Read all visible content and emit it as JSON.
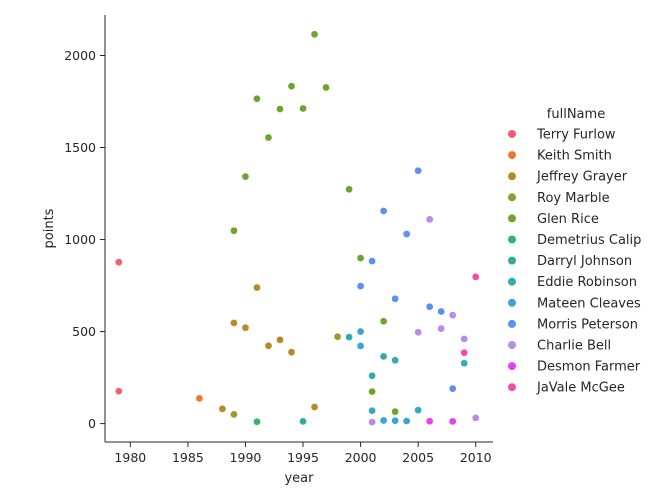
{
  "chart_data": {
    "type": "scatter",
    "xlabel": "year",
    "ylabel": "points",
    "xlim": [
      1977.8,
      2011.5
    ],
    "ylim": [
      -100,
      2220
    ],
    "xticks": [
      1980,
      1985,
      1990,
      1995,
      2000,
      2005,
      2010
    ],
    "yticks": [
      0,
      500,
      1000,
      1500,
      2000
    ],
    "grid": false,
    "legend_title": "fullName",
    "legend_position": "right",
    "series": [
      {
        "name": "Terry Furlow",
        "color": "#f0616c",
        "points": [
          [
            1979,
            877
          ],
          [
            1979,
            176
          ]
        ]
      },
      {
        "name": "Keith Smith",
        "color": "#e8792c",
        "points": [
          [
            1986,
            137
          ]
        ]
      },
      {
        "name": "Jeffrey Grayer",
        "color": "#b88a27",
        "points": [
          [
            1988,
            80
          ],
          [
            1989,
            547
          ],
          [
            1990,
            521
          ],
          [
            1991,
            739
          ],
          [
            1992,
            423
          ],
          [
            1993,
            455
          ],
          [
            1994,
            388
          ],
          [
            1996,
            90
          ]
        ]
      },
      {
        "name": "Roy Marble",
        "color": "#999a27",
        "points": [
          [
            1989,
            50
          ],
          [
            1998,
            472
          ]
        ]
      },
      {
        "name": "Glen Rice",
        "color": "#6ba52b",
        "points": [
          [
            1989,
            1048
          ],
          [
            1990,
            1342
          ],
          [
            1991,
            1765
          ],
          [
            1992,
            1554
          ],
          [
            1993,
            1709
          ],
          [
            1994,
            1833
          ],
          [
            1995,
            1712
          ],
          [
            1996,
            2115
          ],
          [
            1997,
            1826
          ],
          [
            1999,
            1273
          ],
          [
            2000,
            899
          ],
          [
            2001,
            174
          ],
          [
            2002,
            556
          ],
          [
            2003,
            65
          ]
        ]
      },
      {
        "name": "Demetrius Calip",
        "color": "#34b568",
        "points": [
          [
            1991,
            10
          ]
        ]
      },
      {
        "name": "Darryl Johnson",
        "color": "#2fad97",
        "points": [
          [
            1995,
            12
          ]
        ]
      },
      {
        "name": "Eddie Robinson",
        "color": "#33aaae",
        "points": [
          [
            1999,
            470
          ],
          [
            2001,
            260
          ],
          [
            2002,
            365
          ],
          [
            2003,
            344
          ]
        ]
      },
      {
        "name": "Mateen Cleaves",
        "color": "#36a7cf",
        "points": [
          [
            2000,
            500
          ],
          [
            2000,
            422
          ],
          [
            2001,
            70
          ],
          [
            2002,
            17
          ],
          [
            2003,
            16
          ],
          [
            2004,
            14
          ],
          [
            2005,
            73
          ],
          [
            2009,
            328
          ]
        ]
      },
      {
        "name": "Morris Peterson",
        "color": "#5b8ff0",
        "points": [
          [
            2000,
            747
          ],
          [
            2001,
            883
          ],
          [
            2002,
            1155
          ],
          [
            2003,
            678
          ],
          [
            2004,
            1030
          ],
          [
            2005,
            1374
          ],
          [
            2006,
            635
          ],
          [
            2007,
            609
          ],
          [
            2008,
            190
          ]
        ]
      },
      {
        "name": "Charlie Bell",
        "color": "#b58ced",
        "points": [
          [
            2001,
            8
          ],
          [
            2005,
            496
          ],
          [
            2006,
            1110
          ],
          [
            2007,
            516
          ],
          [
            2008,
            589
          ],
          [
            2009,
            460
          ],
          [
            2010,
            31
          ]
        ]
      },
      {
        "name": "Desmon Farmer",
        "color": "#ea3ef0",
        "points": [
          [
            2006,
            13
          ],
          [
            2008,
            12
          ]
        ]
      },
      {
        "name": "JaVale McGee",
        "color": "#f14ca8",
        "points": [
          [
            2009,
            385
          ],
          [
            2010,
            797
          ]
        ]
      }
    ]
  }
}
